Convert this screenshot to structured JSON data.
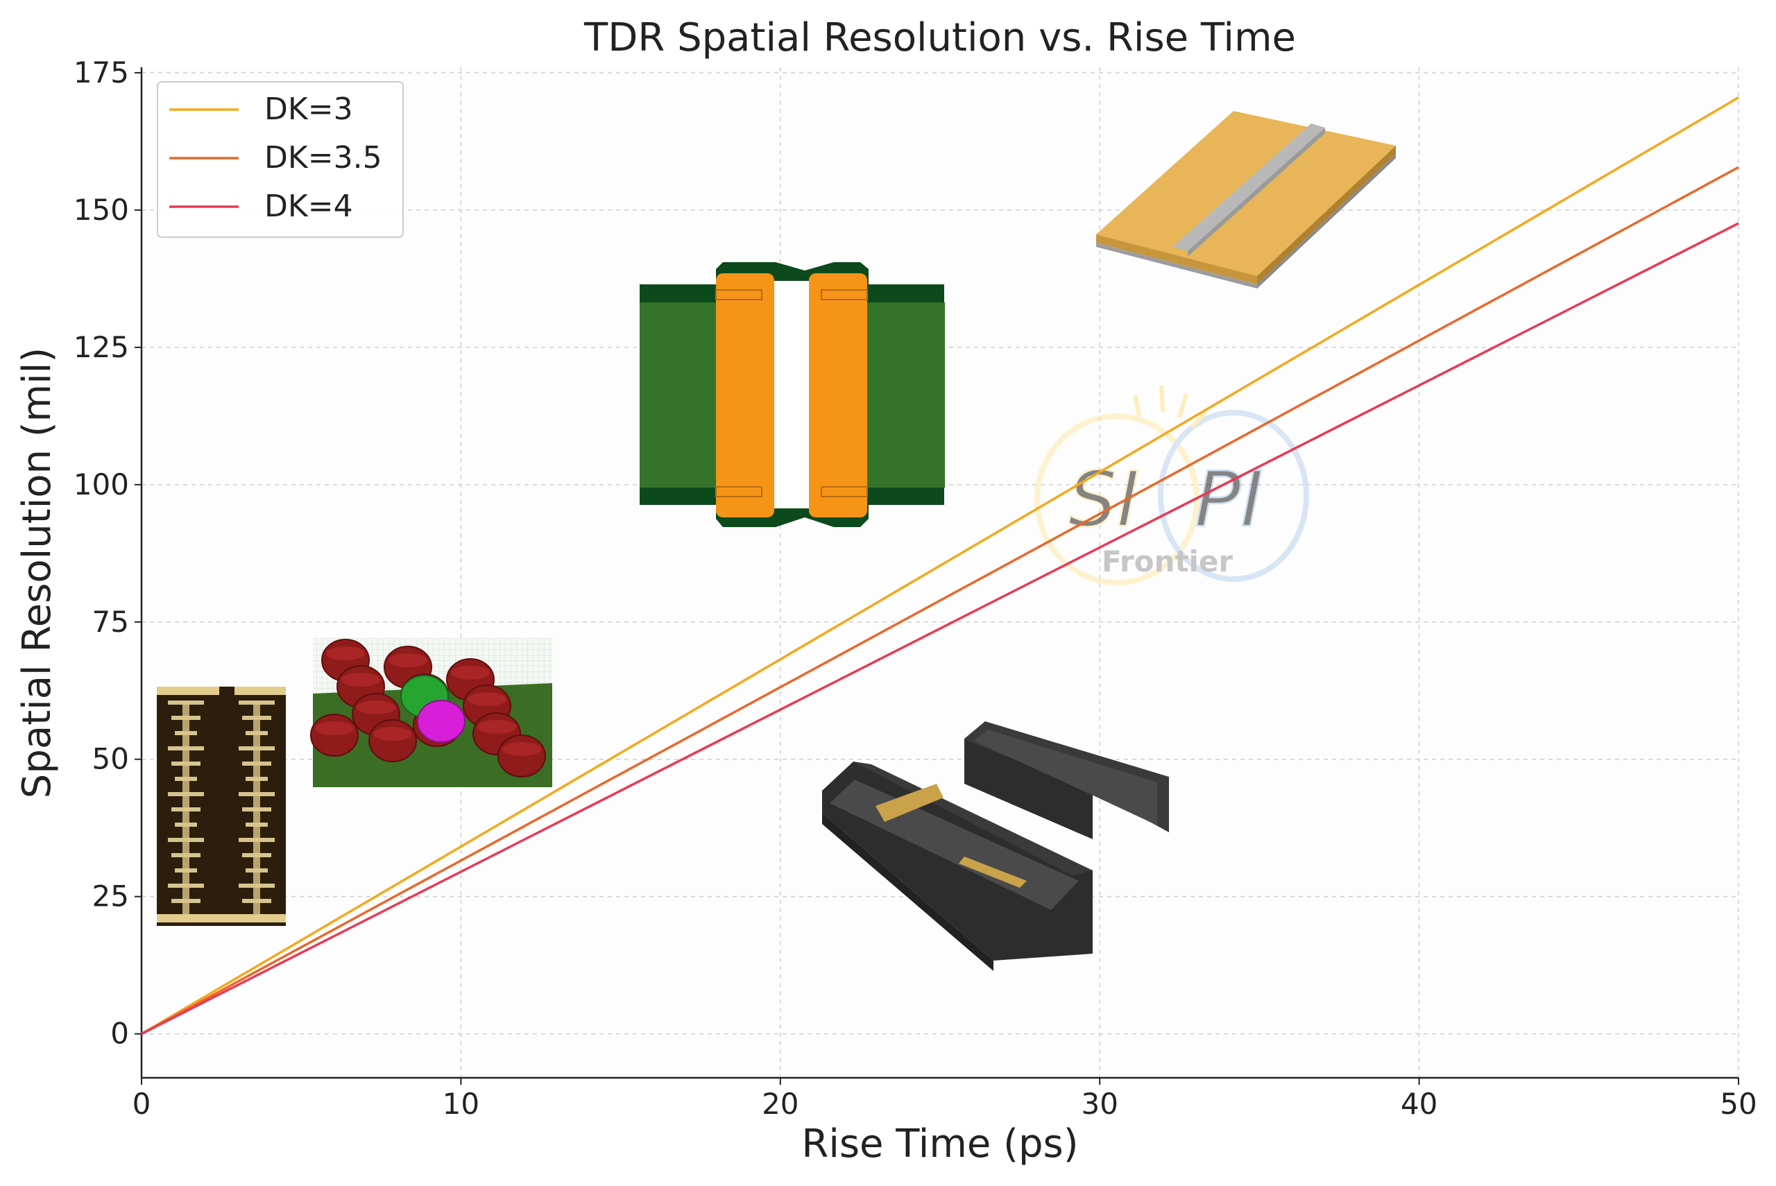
{
  "chart_data": {
    "type": "line",
    "title": "TDR Spatial Resolution vs. Rise Time",
    "xlabel": "Rise Time (ps)",
    "ylabel": "Spatial Resolution (mil)",
    "xlim": [
      0,
      50
    ],
    "ylim": [
      -8,
      176
    ],
    "xticks": [
      0,
      10,
      20,
      30,
      40,
      50
    ],
    "yticks": [
      0,
      25,
      50,
      75,
      100,
      125,
      150,
      175
    ],
    "grid": true,
    "legend_position": "top-left",
    "series": [
      {
        "name": "DK=3",
        "color": "#f5a81c",
        "x": [
          0,
          50
        ],
        "y": [
          0,
          170.5
        ]
      },
      {
        "name": "DK=3.5",
        "color": "#e8692c",
        "x": [
          0,
          50
        ],
        "y": [
          0,
          157.8
        ]
      },
      {
        "name": "DK=4",
        "color": "#e83a57",
        "x": [
          0,
          50
        ],
        "y": [
          0,
          147.6
        ]
      }
    ]
  },
  "watermark": {
    "left": "SI",
    "right": "PI",
    "bottom": "Frontier"
  }
}
